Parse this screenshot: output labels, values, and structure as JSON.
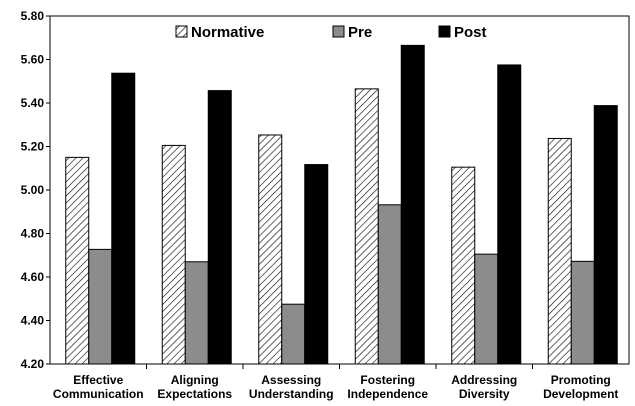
{
  "chart_data": {
    "type": "bar",
    "categories": [
      [
        "Effective",
        "Communication"
      ],
      [
        "Aligning",
        "Expectations"
      ],
      [
        "Assessing",
        "Understanding"
      ],
      [
        "Fostering",
        "Independence"
      ],
      [
        "Addressing",
        "Diversity"
      ],
      [
        "Promoting",
        "Development"
      ]
    ],
    "series": [
      {
        "name": "Normative",
        "values": [
          5.15,
          5.205,
          5.253,
          5.465,
          5.105,
          5.237
        ],
        "fill": "pattern-hatch"
      },
      {
        "name": "Pre",
        "values": [
          4.727,
          4.67,
          4.475,
          4.932,
          4.705,
          4.672
        ],
        "fill": "#8c8c8c"
      },
      {
        "name": "Post",
        "values": [
          5.537,
          5.457,
          5.117,
          5.665,
          5.575,
          5.388
        ],
        "fill": "#000000"
      }
    ],
    "ylim": [
      4.2,
      5.8
    ],
    "yticks": [
      "4.20",
      "4.40",
      "4.60",
      "4.80",
      "5.00",
      "5.20",
      "5.40",
      "5.60",
      "5.80"
    ],
    "title": "",
    "xlabel": "",
    "ylabel": "",
    "grid": false,
    "legend": "top-center"
  }
}
